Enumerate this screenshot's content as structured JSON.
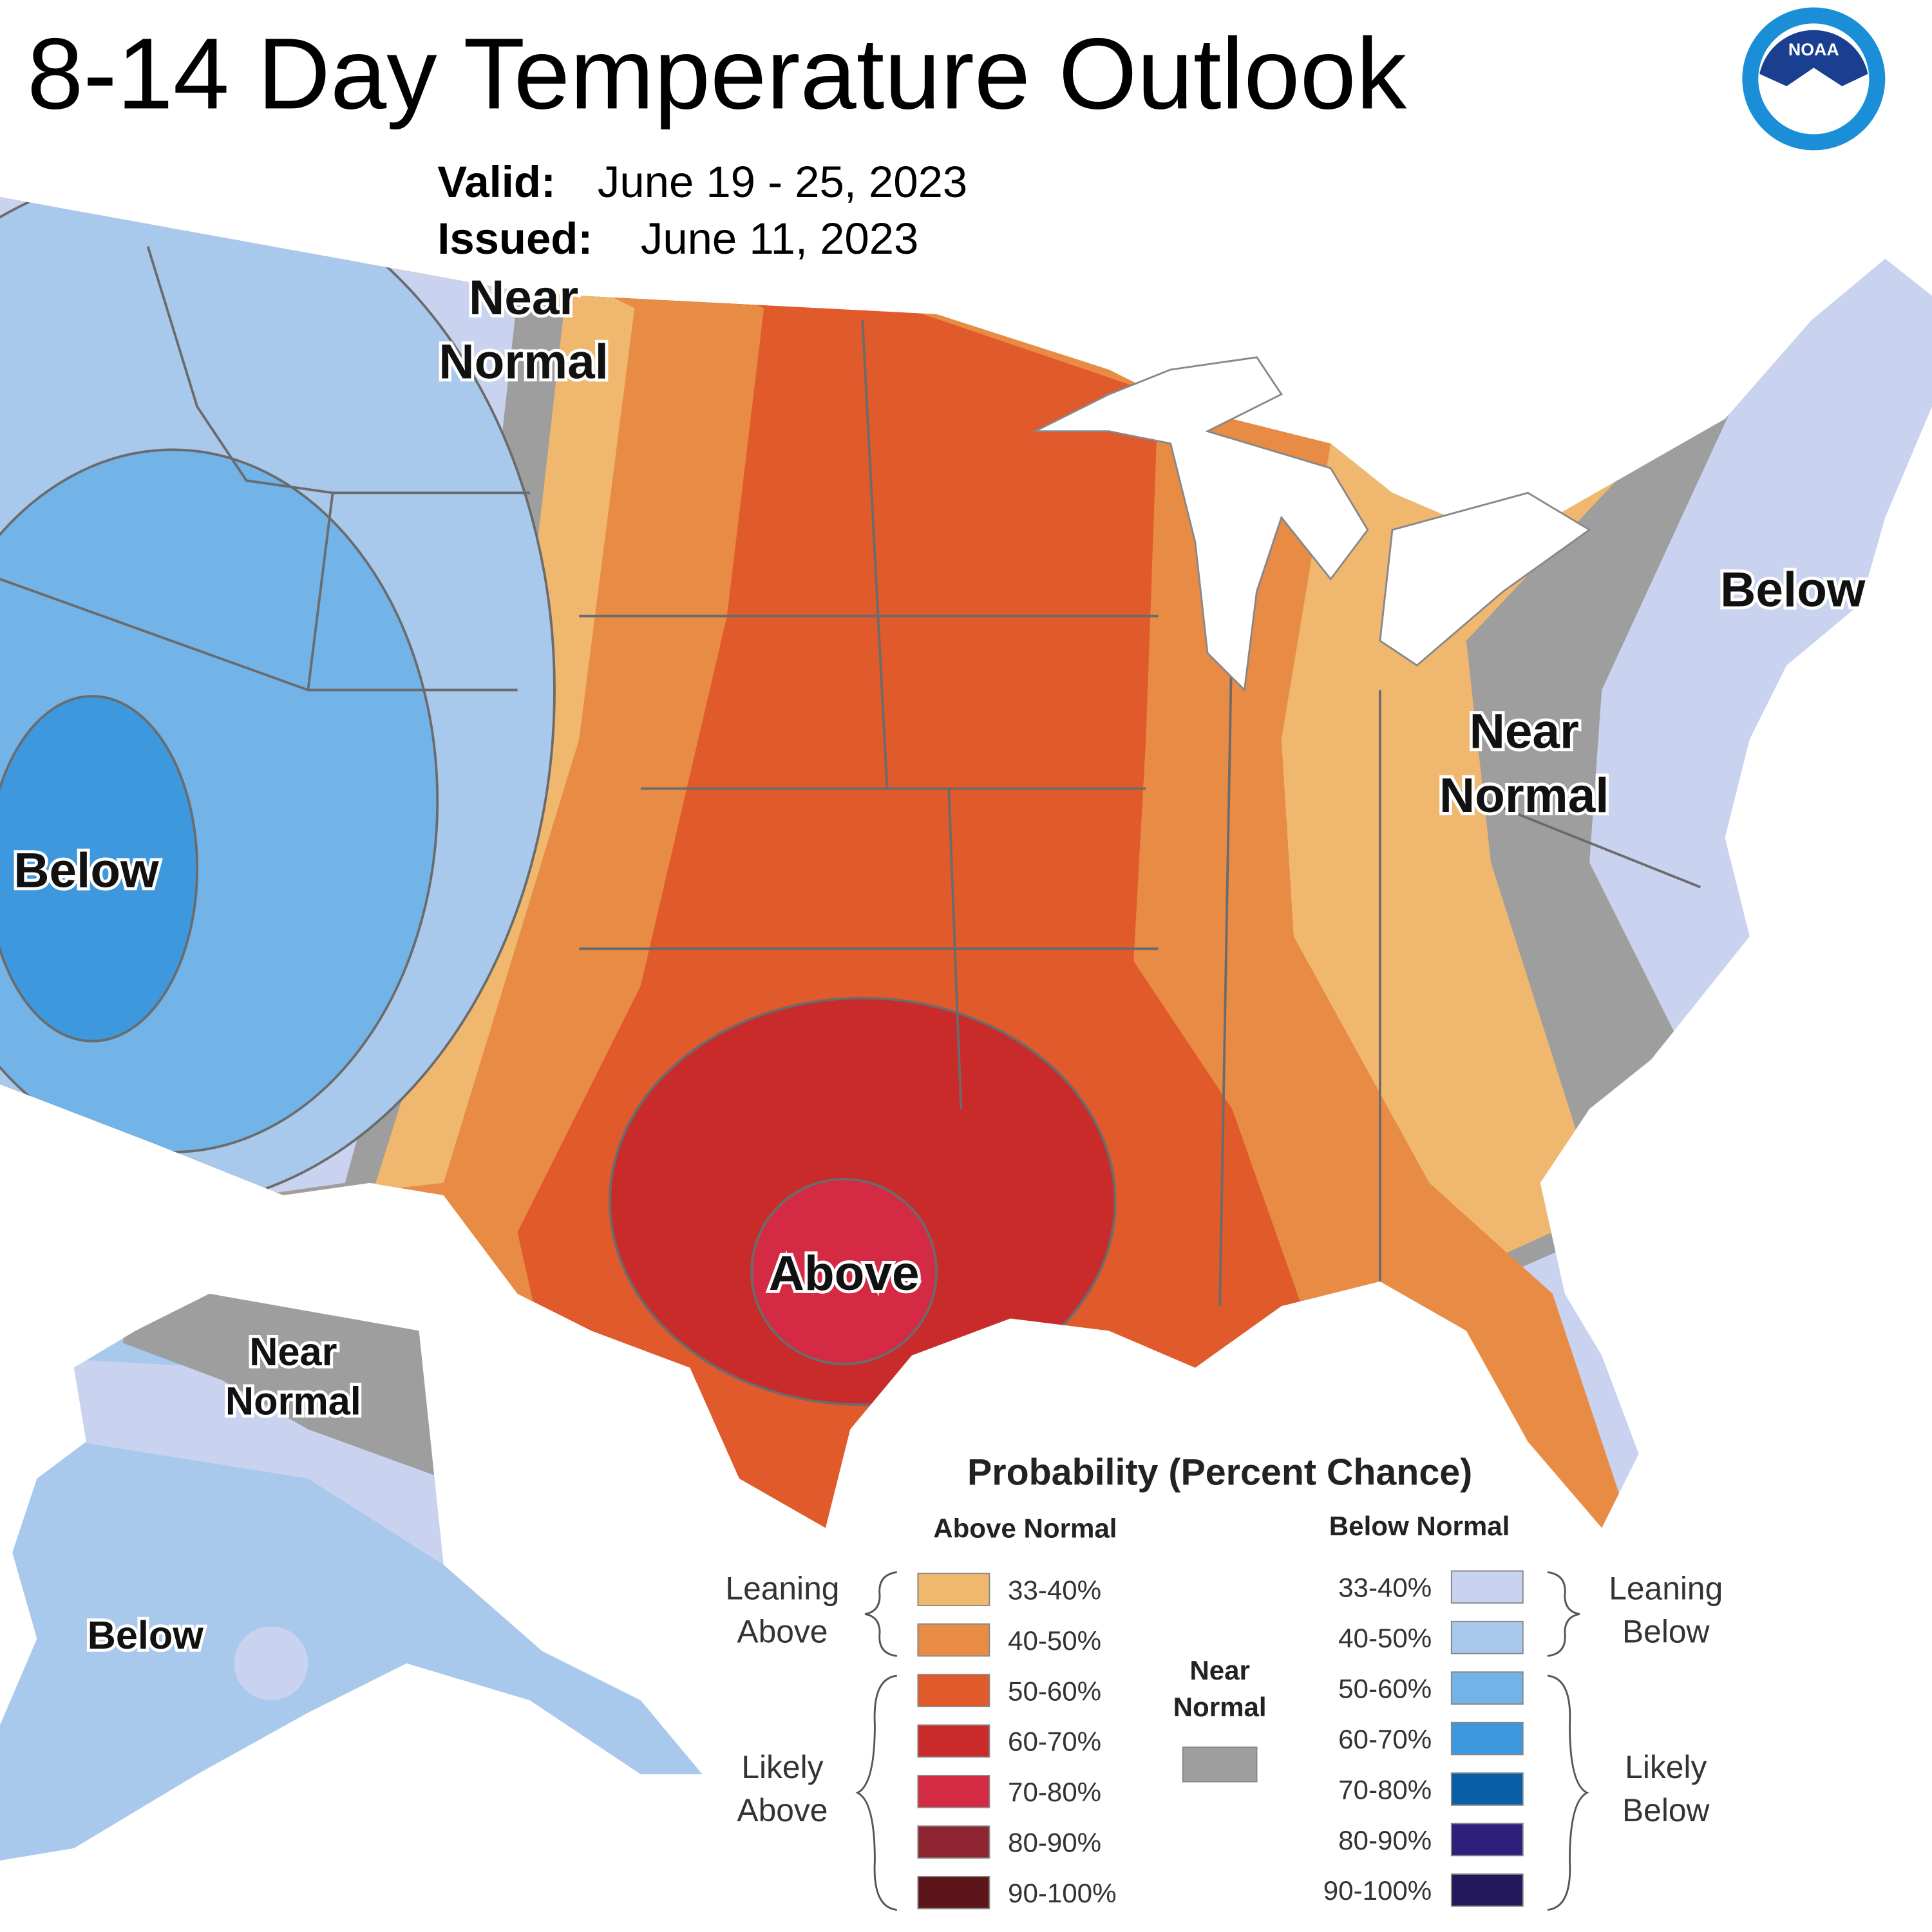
{
  "header": {
    "title": "8-14 Day Temperature Outlook",
    "valid_label": "Valid:",
    "valid": "June 19 - 25, 2023",
    "issued_label": "Issued:",
    "issued": "June 11, 2023",
    "logo": "NOAA"
  },
  "map_labels": [
    {
      "lines": [
        "Near",
        "Normal"
      ]
    },
    {
      "lines": [
        "Below"
      ]
    },
    {
      "lines": [
        "Near",
        "Normal"
      ]
    },
    {
      "lines": [
        "Below"
      ]
    },
    {
      "lines": [
        "Above"
      ]
    },
    {
      "lines": [
        "Near",
        "Normal"
      ]
    },
    {
      "lines": [
        "Below"
      ]
    }
  ],
  "legend": {
    "title": "Probability (Percent Chance)",
    "above_heading": "Above Normal",
    "below_heading": "Below Normal",
    "near_heading": [
      "Near",
      "Normal"
    ],
    "near_color": "#9e9e9e",
    "leaning_above": [
      "Leaning",
      "Above"
    ],
    "likely_above": [
      "Likely",
      "Above"
    ],
    "leaning_below": [
      "Leaning",
      "Below"
    ],
    "likely_below": [
      "Likely",
      "Below"
    ],
    "above": [
      {
        "range": "33-40%",
        "color": "#f0b86e"
      },
      {
        "range": "40-50%",
        "color": "#e88b45"
      },
      {
        "range": "50-60%",
        "color": "#e05a2b"
      },
      {
        "range": "60-70%",
        "color": "#c92a2a"
      },
      {
        "range": "70-80%",
        "color": "#d42a43"
      },
      {
        "range": "80-90%",
        "color": "#8f2530"
      },
      {
        "range": "90-100%",
        "color": "#5c1518"
      }
    ],
    "below": [
      {
        "range": "33-40%",
        "color": "#c9d3ef"
      },
      {
        "range": "40-50%",
        "color": "#a8c8ec"
      },
      {
        "range": "50-60%",
        "color": "#72b3e8"
      },
      {
        "range": "60-70%",
        "color": "#3d98de"
      },
      {
        "range": "70-80%",
        "color": "#0b5ea8"
      },
      {
        "range": "80-90%",
        "color": "#2e1f7a"
      },
      {
        "range": "90-100%",
        "color": "#22185a"
      }
    ]
  }
}
